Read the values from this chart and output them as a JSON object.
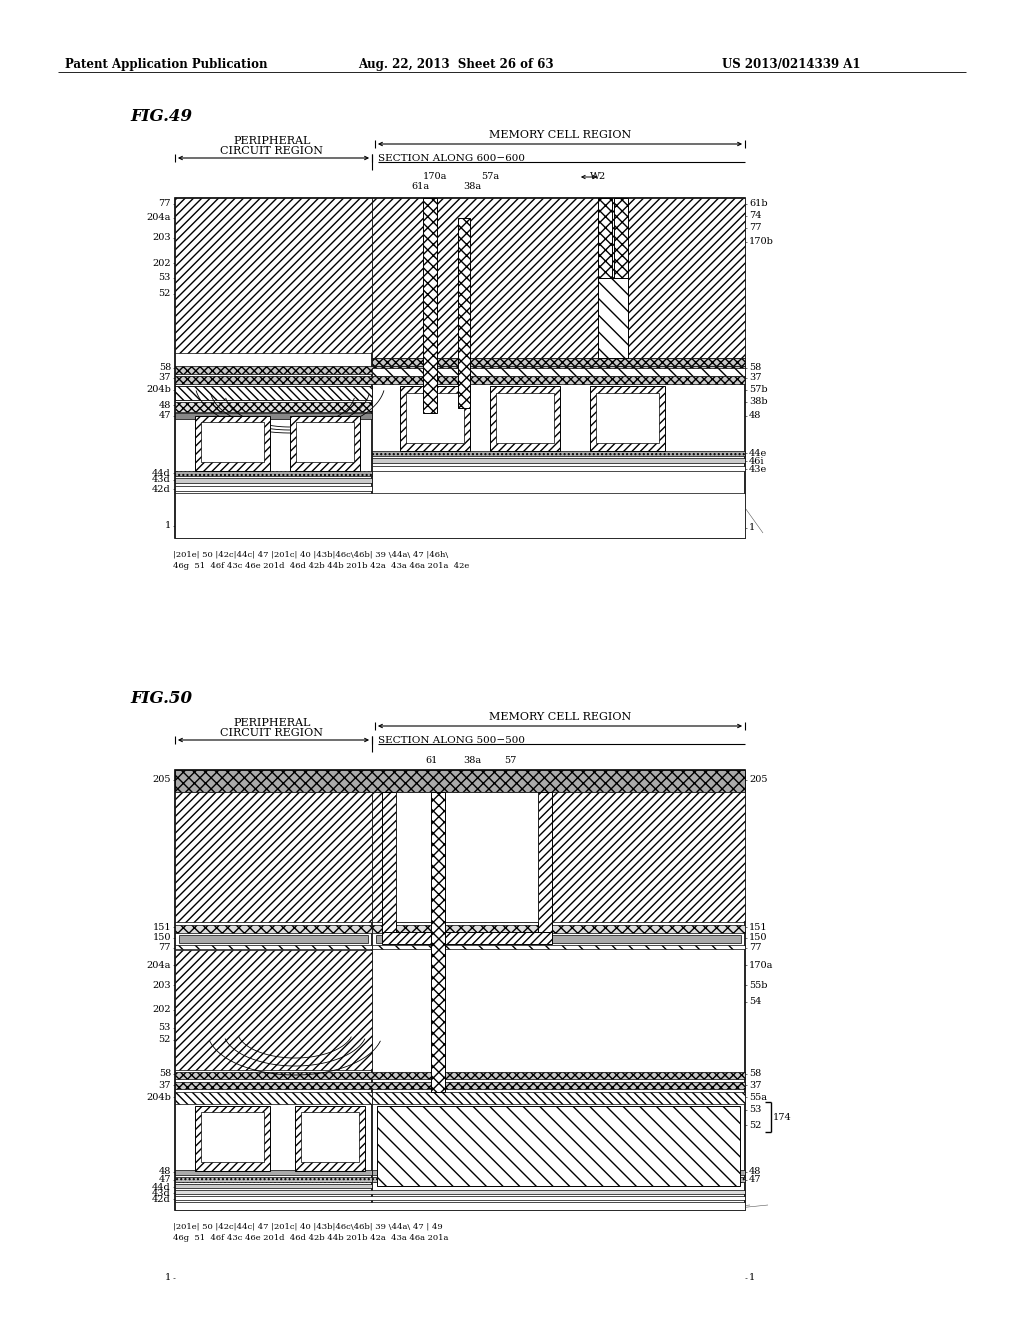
{
  "header_left": "Patent Application Publication",
  "header_mid": "Aug. 22, 2013  Sheet 26 of 63",
  "header_right": "US 2013/0214339 A1",
  "fig49_title": "FIG.49",
  "fig50_title": "FIG.50",
  "bg": "#ffffff"
}
